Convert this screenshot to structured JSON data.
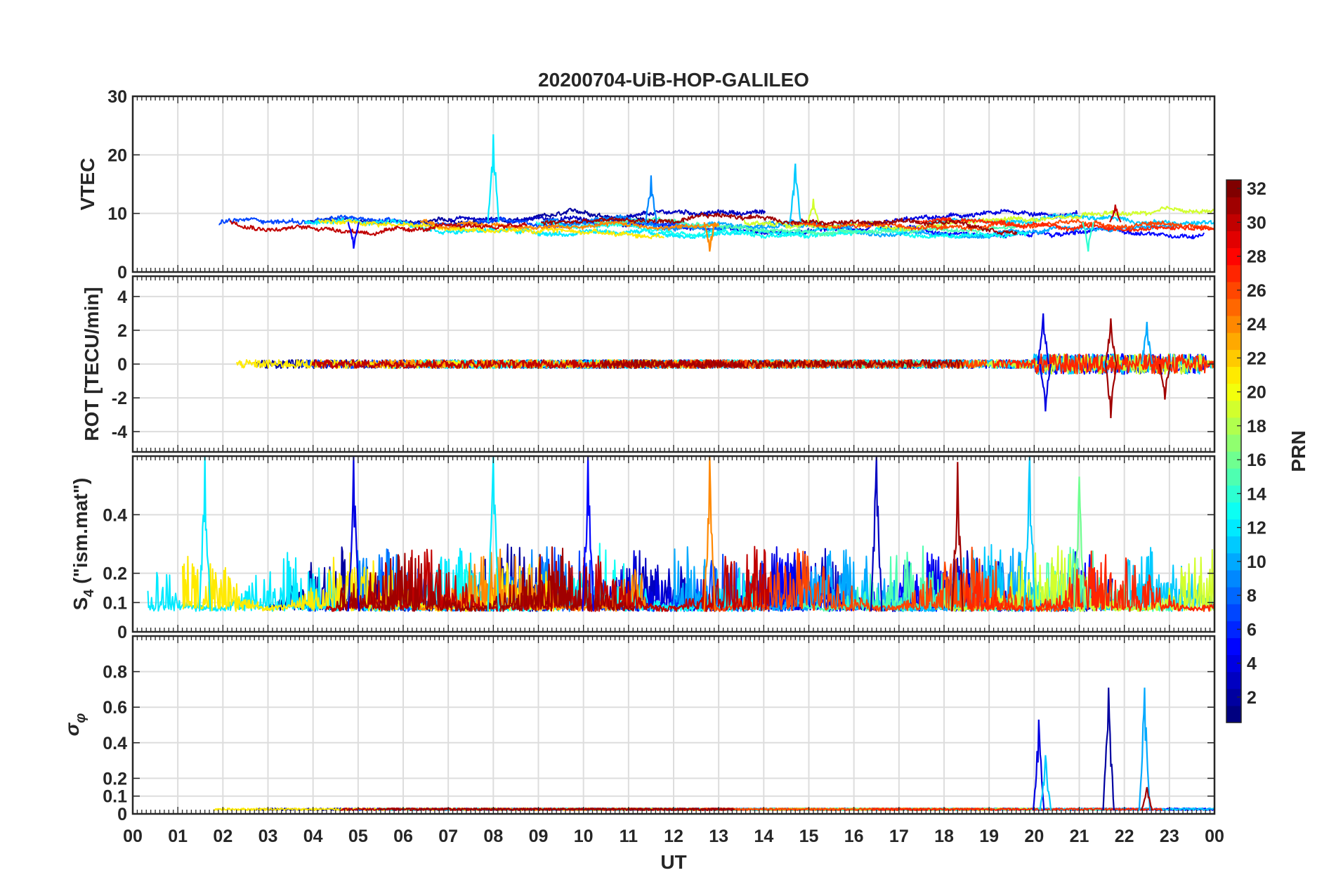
{
  "chart_data": {
    "type": "line",
    "title": "20200704-UiB-HOP-GALILEO",
    "xlabel": "UT",
    "x_tick_labels": [
      "00",
      "01",
      "02",
      "03",
      "04",
      "05",
      "06",
      "07",
      "08",
      "09",
      "10",
      "11",
      "12",
      "13",
      "14",
      "15",
      "16",
      "17",
      "18",
      "19",
      "20",
      "21",
      "22",
      "23",
      "00"
    ],
    "x_range_hours": [
      0,
      24
    ],
    "grid": true,
    "colorbar": {
      "label": "PRN",
      "range": [
        1,
        32
      ],
      "ticks": [
        "2",
        "4",
        "6",
        "8",
        "10",
        "12",
        "14",
        "16",
        "18",
        "20",
        "22",
        "24",
        "26",
        "28",
        "30",
        "32"
      ],
      "colormap": "jet"
    },
    "panels": [
      {
        "id": "vtec",
        "ylabel": "VTEC",
        "ylim": [
          0,
          30
        ],
        "yticks": [
          0,
          10,
          20,
          30
        ],
        "ytick_labels": [
          "0",
          "10",
          "20",
          "30"
        ],
        "background_level": 8.5,
        "features": [
          {
            "prn": 12,
            "t": 8.0,
            "peak": 23.5
          },
          {
            "prn": 9,
            "t": 11.5,
            "peak": 16.5
          },
          {
            "prn": 11,
            "t": 14.7,
            "peak": 18.5
          },
          {
            "prn": 19,
            "t": 15.1,
            "peak": 12.5
          },
          {
            "prn": 24,
            "t": 12.8,
            "peak": 3.5
          },
          {
            "prn": 5,
            "t": 4.9,
            "peak": 4.0
          },
          {
            "prn": 14,
            "t": 21.2,
            "peak": 3.5
          },
          {
            "prn": 30,
            "t": 21.8,
            "peak": 11.5
          }
        ]
      },
      {
        "id": "rot",
        "ylabel": "ROT [TECU/min]",
        "ylim": [
          -5.2,
          5.2
        ],
        "yticks": [
          -4,
          -2,
          0,
          2,
          4
        ],
        "ytick_labels": [
          "-4",
          "-2",
          "0",
          "2",
          "4"
        ],
        "background_level": 0,
        "features": [
          {
            "prn": 4,
            "t": 20.2,
            "peak": 3.0
          },
          {
            "prn": 4,
            "t": 20.25,
            "peak": -2.8
          },
          {
            "prn": 31,
            "t": 21.7,
            "peak": 2.7
          },
          {
            "prn": 31,
            "t": 21.7,
            "peak": -3.2
          },
          {
            "prn": 10,
            "t": 22.5,
            "peak": 2.5
          },
          {
            "prn": 31,
            "t": 22.9,
            "peak": -2.1
          }
        ]
      },
      {
        "id": "s4",
        "ylabel": "S4 (\"ism.mat\")",
        "ylabel_main": "S",
        "ylabel_sub": "4",
        "ylabel_rest": " (\"ism.mat\")",
        "ylim": [
          0,
          0.6
        ],
        "yticks": [
          0,
          0.1,
          0.2,
          0.4
        ],
        "ytick_labels": [
          "0",
          "0.1",
          "0.2",
          "0.4"
        ],
        "background_level": 0.07,
        "features": [
          {
            "prn": 12,
            "t": 1.6,
            "peak": 0.6
          },
          {
            "prn": 4,
            "t": 4.9,
            "peak": 0.6
          },
          {
            "prn": 12,
            "t": 8.0,
            "peak": 0.6
          },
          {
            "prn": 5,
            "t": 10.1,
            "peak": 0.6
          },
          {
            "prn": 24,
            "t": 12.8,
            "peak": 0.6
          },
          {
            "prn": 3,
            "t": 16.5,
            "peak": 0.6
          },
          {
            "prn": 31,
            "t": 18.3,
            "peak": 0.58
          },
          {
            "prn": 11,
            "t": 19.9,
            "peak": 0.6
          },
          {
            "prn": 16,
            "t": 21.0,
            "peak": 0.53
          }
        ]
      },
      {
        "id": "sigma",
        "ylabel": "σφ",
        "ylabel_main": "σ",
        "ylabel_sub": "φ",
        "ylim": [
          0,
          1.0
        ],
        "yticks": [
          0,
          0.1,
          0.2,
          0.4,
          0.6,
          0.8
        ],
        "ytick_labels": [
          "0",
          "0.1",
          "0.2",
          "0.4",
          "0.6",
          "0.8"
        ],
        "background_level": 0.02,
        "features": [
          {
            "prn": 4,
            "t": 20.1,
            "peak": 0.53
          },
          {
            "prn": 11,
            "t": 20.25,
            "peak": 0.33
          },
          {
            "prn": 2,
            "t": 21.65,
            "peak": 0.71
          },
          {
            "prn": 10,
            "t": 22.45,
            "peak": 0.71
          },
          {
            "prn": 31,
            "t": 22.5,
            "peak": 0.15
          }
        ]
      }
    ]
  }
}
